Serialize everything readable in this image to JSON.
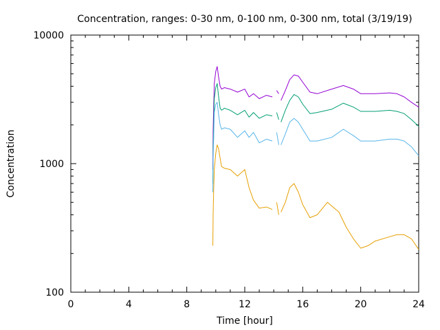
{
  "chart_data": {
    "type": "line",
    "title": "Concentration, ranges: 0-30 nm, 0-100 nm, 0-300 nm, total (3/19/19)",
    "xlabel": "Time [hour]",
    "ylabel": "Concentration",
    "xlim": [
      0,
      24
    ],
    "ylim": [
      100,
      10000
    ],
    "yscale": "log",
    "grid": false,
    "legend": "none",
    "x_ticks": [
      0,
      4,
      8,
      12,
      16,
      20,
      24
    ],
    "y_ticks": [
      100,
      1000,
      10000
    ],
    "series": [
      {
        "name": "total",
        "color": "#9400d3",
        "x": [
          9.8,
          9.82,
          9.85,
          9.9,
          10.0,
          10.1,
          10.2,
          10.3,
          10.4,
          10.6,
          11.0,
          11.5,
          12.0,
          12.3,
          12.6,
          13.0,
          13.5,
          13.9,
          null,
          14.2,
          14.35,
          null,
          14.5,
          14.8,
          15.1,
          15.4,
          15.7,
          16.0,
          16.5,
          17.0,
          18.0,
          18.8,
          19.5,
          20.0,
          21.0,
          22.0,
          22.5,
          23.0,
          23.5,
          24.0
        ],
        "y": [
          900,
          1800,
          2600,
          4200,
          5200,
          5700,
          4700,
          4000,
          3800,
          3900,
          3800,
          3600,
          3800,
          3300,
          3500,
          3200,
          3400,
          3300,
          null,
          3700,
          3500,
          null,
          3100,
          3700,
          4500,
          4900,
          4800,
          4300,
          3600,
          3500,
          3800,
          4050,
          3800,
          3500,
          3500,
          3550,
          3500,
          3300,
          3000,
          2750
        ]
      },
      {
        "name": "0-300 nm",
        "color": "#009e73",
        "x": [
          9.8,
          9.82,
          9.85,
          9.9,
          10.0,
          10.1,
          10.2,
          10.3,
          10.4,
          10.6,
          11.0,
          11.5,
          12.0,
          12.3,
          12.6,
          13.0,
          13.5,
          13.9,
          null,
          14.2,
          14.35,
          null,
          14.5,
          14.8,
          15.1,
          15.4,
          15.7,
          16.0,
          16.5,
          17.0,
          18.0,
          18.8,
          19.5,
          20.0,
          21.0,
          22.0,
          22.5,
          23.0,
          23.5,
          24.0
        ],
        "y": [
          700,
          1300,
          1900,
          3200,
          3900,
          4200,
          3300,
          2700,
          2600,
          2700,
          2600,
          2400,
          2600,
          2300,
          2500,
          2250,
          2400,
          2350,
          null,
          2500,
          2200,
          null,
          2100,
          2600,
          3100,
          3450,
          3300,
          2900,
          2450,
          2500,
          2650,
          2950,
          2750,
          2550,
          2550,
          2600,
          2550,
          2450,
          2200,
          1950
        ]
      },
      {
        "name": "0-100 nm",
        "color": "#56b4e9",
        "x": [
          9.8,
          9.82,
          9.85,
          9.9,
          10.0,
          10.1,
          10.2,
          10.3,
          10.4,
          10.6,
          11.0,
          11.5,
          12.0,
          12.3,
          12.6,
          13.0,
          13.5,
          13.9,
          null,
          14.2,
          14.35,
          null,
          14.5,
          14.8,
          15.1,
          15.4,
          15.7,
          16.0,
          16.5,
          17.0,
          18.0,
          18.8,
          19.5,
          20.0,
          21.0,
          22.0,
          22.5,
          23.0,
          23.5,
          24.0
        ],
        "y": [
          600,
          1100,
          1500,
          2500,
          2900,
          3000,
          2400,
          2000,
          1850,
          1900,
          1850,
          1600,
          1800,
          1600,
          1750,
          1450,
          1550,
          1500,
          null,
          1750,
          1400,
          null,
          1400,
          1700,
          2100,
          2250,
          2100,
          1850,
          1500,
          1500,
          1600,
          1850,
          1650,
          1500,
          1500,
          1550,
          1550,
          1500,
          1350,
          1150
        ]
      },
      {
        "name": "0-30 nm",
        "color": "#e69f00",
        "x": [
          9.8,
          9.82,
          9.85,
          9.9,
          10.0,
          10.1,
          10.2,
          10.3,
          10.4,
          10.6,
          11.0,
          11.5,
          12.0,
          12.3,
          12.6,
          13.0,
          13.5,
          13.9,
          null,
          14.2,
          14.35,
          null,
          14.5,
          14.8,
          15.1,
          15.4,
          15.7,
          16.0,
          16.5,
          17.0,
          17.7,
          18.5,
          19.0,
          19.5,
          20.0,
          20.5,
          21.0,
          22.0,
          22.5,
          23.0,
          23.5,
          24.0
        ],
        "y": [
          230,
          400,
          600,
          900,
          1200,
          1400,
          1300,
          1100,
          950,
          920,
          900,
          800,
          900,
          650,
          520,
          450,
          460,
          440,
          null,
          500,
          400,
          null,
          420,
          500,
          650,
          700,
          600,
          480,
          380,
          400,
          500,
          420,
          320,
          260,
          220,
          230,
          250,
          270,
          280,
          280,
          260,
          215
        ]
      }
    ]
  }
}
